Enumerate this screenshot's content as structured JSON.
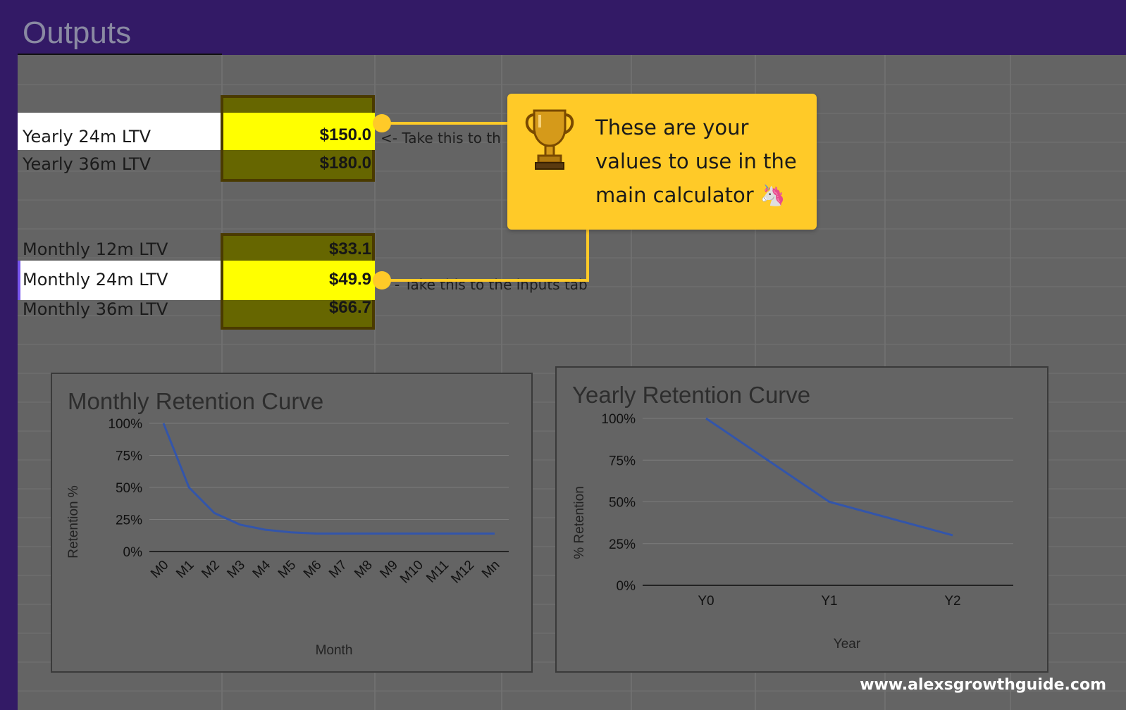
{
  "header": {
    "title": "Outputs"
  },
  "yearly": {
    "rows": [
      {
        "label": "Yearly 24m LTV",
        "value": "$150.0"
      },
      {
        "label": "Yearly 36m LTV",
        "value": "$180.0"
      }
    ],
    "note": "<- Take this to th"
  },
  "monthly": {
    "rows": [
      {
        "label": "Monthly 12m LTV",
        "value": "$33.1"
      },
      {
        "label": "Monthly 24m LTV",
        "value": "$49.9"
      },
      {
        "label": "Monthly 36m LTV",
        "value": "$66.7"
      }
    ],
    "note": "- Take this to the inputs tab"
  },
  "callout": {
    "icon": "trophy-icon",
    "line1": "These are your",
    "line2": "values to use in the",
    "line3": "main calculator 🦄"
  },
  "colors": {
    "header": "#331a66",
    "highlight": "#ffff00",
    "value_cell": "#666600",
    "callout": "#ffca28",
    "series": "#3355aa"
  },
  "charts": [
    {
      "type": "line",
      "title": "Monthly Retention Curve",
      "xlabel": "Month",
      "ylabel": "Retention %",
      "categories": [
        "M0",
        "M1",
        "M2",
        "M3",
        "M4",
        "M5",
        "M6",
        "M7",
        "M8",
        "M9",
        "M10",
        "M11",
        "M12",
        "Mn"
      ],
      "values": [
        100,
        50,
        30,
        21,
        17,
        15,
        14,
        14,
        14,
        14,
        14,
        14,
        14,
        14
      ],
      "yticks": [
        "0%",
        "25%",
        "50%",
        "75%",
        "100%"
      ],
      "ylim": [
        0,
        100
      ]
    },
    {
      "type": "line",
      "title": "Yearly Retention Curve",
      "xlabel": "Year",
      "ylabel": "% Retention",
      "categories": [
        "Y0",
        "Y1",
        "Y2"
      ],
      "values": [
        100,
        50,
        30
      ],
      "yticks": [
        "0%",
        "25%",
        "50%",
        "75%",
        "100%"
      ],
      "ylim": [
        0,
        100
      ]
    }
  ],
  "footer": {
    "url": "www.alexsgrowthguide.com"
  }
}
